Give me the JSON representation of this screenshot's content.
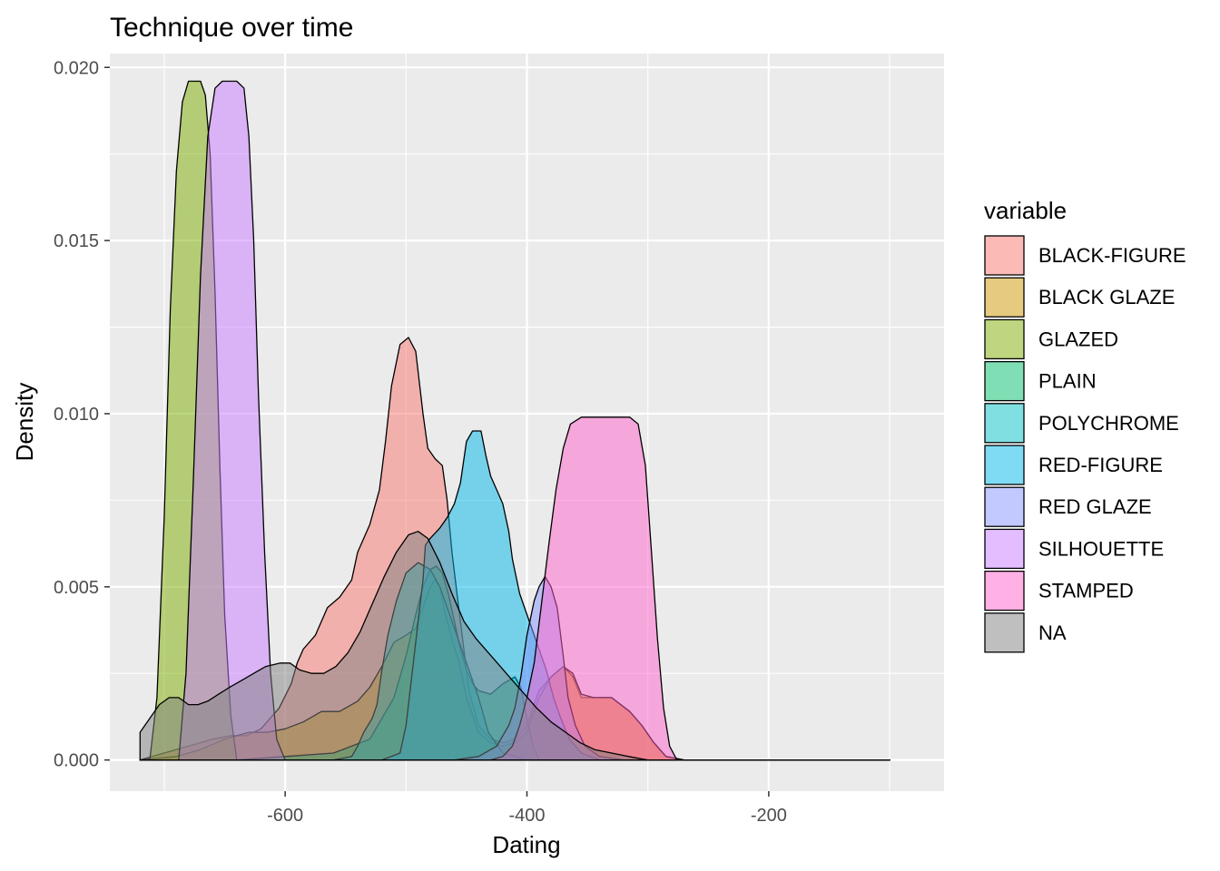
{
  "chart_data": {
    "type": "area",
    "title": "Technique over time",
    "xlabel": "Dating",
    "ylabel": "Density",
    "xlim": [
      -745,
      -55
    ],
    "ylim": [
      -0.0009,
      0.0204
    ],
    "x_ticks": [
      -600,
      -400,
      -200
    ],
    "x_tick_labels": [
      "-600",
      "-400",
      "-200"
    ],
    "x_minor": [
      -700,
      -500,
      -300,
      -100
    ],
    "y_ticks": [
      0,
      0.005,
      0.01,
      0.015,
      0.02
    ],
    "y_tick_labels": [
      "0.000",
      "0.005",
      "0.010",
      "0.015",
      "0.020"
    ],
    "y_minor": [
      0.0025,
      0.0075,
      0.0125,
      0.0175
    ],
    "grid": true,
    "legend_position": "right",
    "legend_title": "variable",
    "series": [
      {
        "name": "BLACK-FIGURE",
        "color": "#F8766D",
        "points": [
          [
            -720,
            0
          ],
          [
            -700,
            0.0002
          ],
          [
            -680,
            0.0004
          ],
          [
            -660,
            0.0006
          ],
          [
            -645,
            0.0007
          ],
          [
            -632,
            0.0007
          ],
          [
            -620,
            0.0009
          ],
          [
            -605,
            0.0015
          ],
          [
            -595,
            0.0022
          ],
          [
            -590,
            0.0028
          ],
          [
            -585,
            0.0032
          ],
          [
            -575,
            0.0036
          ],
          [
            -565,
            0.0044
          ],
          [
            -555,
            0.0047
          ],
          [
            -545,
            0.0052
          ],
          [
            -540,
            0.006
          ],
          [
            -530,
            0.0068
          ],
          [
            -522,
            0.0078
          ],
          [
            -517,
            0.0092
          ],
          [
            -512,
            0.0108
          ],
          [
            -505,
            0.012
          ],
          [
            -498,
            0.0122
          ],
          [
            -492,
            0.0118
          ],
          [
            -486,
            0.01
          ],
          [
            -482,
            0.009
          ],
          [
            -476,
            0.0087
          ],
          [
            -470,
            0.0085
          ],
          [
            -466,
            0.0075
          ],
          [
            -462,
            0.006
          ],
          [
            -455,
            0.004
          ],
          [
            -448,
            0.002
          ],
          [
            -440,
            0.001
          ],
          [
            -430,
            0.0006
          ],
          [
            -420,
            0.0005
          ],
          [
            -410,
            0.0006
          ],
          [
            -400,
            0.001
          ],
          [
            -390,
            0.002
          ],
          [
            -380,
            0.0024
          ],
          [
            -370,
            0.0027
          ],
          [
            -362,
            0.0024
          ],
          [
            -355,
            0.0018
          ],
          [
            -345,
            0.0018
          ],
          [
            -330,
            0.0018
          ],
          [
            -315,
            0.0014
          ],
          [
            -305,
            0.001
          ],
          [
            -295,
            0.0005
          ],
          [
            -285,
            0.0001
          ],
          [
            -270,
            0
          ],
          [
            -100,
            0
          ]
        ]
      },
      {
        "name": "BLACK GLAZE",
        "color": "#CD9600",
        "points": [
          [
            -720,
            0
          ],
          [
            -690,
            0.0001
          ],
          [
            -670,
            0.0003
          ],
          [
            -650,
            0.0006
          ],
          [
            -630,
            0.0008
          ],
          [
            -615,
            0.0008
          ],
          [
            -600,
            0.0009
          ],
          [
            -585,
            0.0011
          ],
          [
            -570,
            0.0014
          ],
          [
            -555,
            0.0014
          ],
          [
            -540,
            0.0017
          ],
          [
            -530,
            0.0021
          ],
          [
            -520,
            0.0027
          ],
          [
            -510,
            0.0034
          ],
          [
            -500,
            0.0036
          ],
          [
            -492,
            0.0038
          ],
          [
            -486,
            0.0044
          ],
          [
            -480,
            0.005
          ],
          [
            -476,
            0.0052
          ],
          [
            -472,
            0.005
          ],
          [
            -468,
            0.0043
          ],
          [
            -462,
            0.0035
          ],
          [
            -456,
            0.0028
          ],
          [
            -450,
            0.0018
          ],
          [
            -440,
            0.0008
          ],
          [
            -430,
            0.0005
          ],
          [
            -420,
            0.0004
          ],
          [
            -410,
            0.0005
          ],
          [
            -400,
            0.0008
          ],
          [
            -390,
            0.0018
          ],
          [
            -380,
            0.0024
          ],
          [
            -370,
            0.0027
          ],
          [
            -362,
            0.0025
          ],
          [
            -355,
            0.0019
          ],
          [
            -345,
            0.0018
          ],
          [
            -330,
            0.0018
          ],
          [
            -315,
            0.0014
          ],
          [
            -305,
            0.001
          ],
          [
            -295,
            0.0005
          ],
          [
            -285,
            0.0001
          ],
          [
            -270,
            0
          ],
          [
            -100,
            0
          ]
        ]
      },
      {
        "name": "GLAZED",
        "color": "#7CAE00",
        "points": [
          [
            -720,
            0
          ],
          [
            -712,
            0
          ],
          [
            -706,
            0.0018
          ],
          [
            -700,
            0.007
          ],
          [
            -695,
            0.013
          ],
          [
            -690,
            0.017
          ],
          [
            -685,
            0.019
          ],
          [
            -680,
            0.0196
          ],
          [
            -670,
            0.0196
          ],
          [
            -666,
            0.0192
          ],
          [
            -662,
            0.0175
          ],
          [
            -658,
            0.0135
          ],
          [
            -654,
            0.0085
          ],
          [
            -650,
            0.0042
          ],
          [
            -645,
            0.0013
          ],
          [
            -640,
            0
          ],
          [
            -100,
            0
          ]
        ]
      },
      {
        "name": "PLAIN",
        "color": "#00BE67",
        "points": [
          [
            -720,
            0
          ],
          [
            -640,
            0
          ],
          [
            -600,
            0.0001
          ],
          [
            -560,
            0.0002
          ],
          [
            -530,
            0.0006
          ],
          [
            -510,
            0.0018
          ],
          [
            -500,
            0.003
          ],
          [
            -492,
            0.0042
          ],
          [
            -486,
            0.005
          ],
          [
            -480,
            0.0055
          ],
          [
            -475,
            0.0056
          ],
          [
            -470,
            0.0054
          ],
          [
            -465,
            0.0048
          ],
          [
            -460,
            0.004
          ],
          [
            -455,
            0.0032
          ],
          [
            -450,
            0.0026
          ],
          [
            -445,
            0.0022
          ],
          [
            -440,
            0.002
          ],
          [
            -430,
            0.0019
          ],
          [
            -420,
            0.0022
          ],
          [
            -410,
            0.0024
          ],
          [
            -405,
            0.0021
          ],
          [
            -400,
            0.0012
          ],
          [
            -395,
            0.0004
          ],
          [
            -390,
            0
          ],
          [
            -100,
            0
          ]
        ]
      },
      {
        "name": "POLYCHROME",
        "color": "#00BFC4",
        "points": [
          [
            -720,
            0
          ],
          [
            -640,
            0
          ],
          [
            -560,
            0
          ],
          [
            -545,
            0.0001
          ],
          [
            -540,
            0.0004
          ],
          [
            -535,
            0.0008
          ],
          [
            -528,
            0.0012
          ],
          [
            -524,
            0.0016
          ],
          [
            -520,
            0.0026
          ],
          [
            -515,
            0.0036
          ],
          [
            -508,
            0.0046
          ],
          [
            -500,
            0.0054
          ],
          [
            -490,
            0.0057
          ],
          [
            -480,
            0.0055
          ],
          [
            -472,
            0.005
          ],
          [
            -464,
            0.0042
          ],
          [
            -456,
            0.0034
          ],
          [
            -448,
            0.0026
          ],
          [
            -440,
            0.0018
          ],
          [
            -432,
            0.0008
          ],
          [
            -420,
            0.0002
          ],
          [
            -400,
            0
          ],
          [
            -100,
            0
          ]
        ]
      },
      {
        "name": "RED-FIGURE",
        "color": "#00B8E7",
        "points": [
          [
            -720,
            0
          ],
          [
            -520,
            0
          ],
          [
            -505,
            0.0002
          ],
          [
            -500,
            0.001
          ],
          [
            -495,
            0.0025
          ],
          [
            -490,
            0.004
          ],
          [
            -486,
            0.0052
          ],
          [
            -484,
            0.0062
          ],
          [
            -480,
            0.0064
          ],
          [
            -472,
            0.0067
          ],
          [
            -466,
            0.007
          ],
          [
            -460,
            0.0074
          ],
          [
            -455,
            0.008
          ],
          [
            -450,
            0.0092
          ],
          [
            -445,
            0.0095
          ],
          [
            -438,
            0.0095
          ],
          [
            -434,
            0.0088
          ],
          [
            -430,
            0.0082
          ],
          [
            -425,
            0.0078
          ],
          [
            -420,
            0.0074
          ],
          [
            -415,
            0.0066
          ],
          [
            -412,
            0.0058
          ],
          [
            -406,
            0.0048
          ],
          [
            -398,
            0.004
          ],
          [
            -390,
            0.0032
          ],
          [
            -384,
            0.0026
          ],
          [
            -378,
            0.0018
          ],
          [
            -372,
            0.0012
          ],
          [
            -365,
            0.0006
          ],
          [
            -355,
            0.0002
          ],
          [
            -340,
            0
          ],
          [
            -100,
            0
          ]
        ]
      },
      {
        "name": "RED GLAZE",
        "color": "#8494FF",
        "points": [
          [
            -720,
            0
          ],
          [
            -460,
            0
          ],
          [
            -440,
            0.0001
          ],
          [
            -425,
            0.0004
          ],
          [
            -415,
            0.001
          ],
          [
            -410,
            0.0015
          ],
          [
            -405,
            0.0024
          ],
          [
            -400,
            0.0036
          ],
          [
            -394,
            0.0046
          ],
          [
            -390,
            0.005
          ],
          [
            -385,
            0.0053
          ],
          [
            -380,
            0.005
          ],
          [
            -375,
            0.0044
          ],
          [
            -370,
            0.003
          ],
          [
            -366,
            0.0018
          ],
          [
            -360,
            0.001
          ],
          [
            -352,
            0.0004
          ],
          [
            -340,
            0.0001
          ],
          [
            -320,
            0
          ],
          [
            -100,
            0
          ]
        ]
      },
      {
        "name": "SILHOUETTE",
        "color": "#C77CFF",
        "points": [
          [
            -720,
            0
          ],
          [
            -688,
            0
          ],
          [
            -682,
            0.0025
          ],
          [
            -676,
            0.008
          ],
          [
            -670,
            0.014
          ],
          [
            -664,
            0.018
          ],
          [
            -658,
            0.0194
          ],
          [
            -652,
            0.0196
          ],
          [
            -640,
            0.0196
          ],
          [
            -634,
            0.0194
          ],
          [
            -630,
            0.018
          ],
          [
            -626,
            0.015
          ],
          [
            -622,
            0.0105
          ],
          [
            -617,
            0.006
          ],
          [
            -612,
            0.0025
          ],
          [
            -607,
            0.0006
          ],
          [
            -600,
            0
          ],
          [
            -100,
            0
          ]
        ]
      },
      {
        "name": "STAMPED",
        "color": "#FF61CC",
        "points": [
          [
            -720,
            0
          ],
          [
            -430,
            0
          ],
          [
            -420,
            0.0001
          ],
          [
            -412,
            0.0004
          ],
          [
            -406,
            0.001
          ],
          [
            -400,
            0.0018
          ],
          [
            -394,
            0.0028
          ],
          [
            -388,
            0.0045
          ],
          [
            -382,
            0.0062
          ],
          [
            -376,
            0.0078
          ],
          [
            -370,
            0.009
          ],
          [
            -364,
            0.0097
          ],
          [
            -355,
            0.0099
          ],
          [
            -315,
            0.0099
          ],
          [
            -308,
            0.0097
          ],
          [
            -302,
            0.0085
          ],
          [
            -297,
            0.006
          ],
          [
            -292,
            0.0035
          ],
          [
            -287,
            0.0015
          ],
          [
            -282,
            0.0004
          ],
          [
            -276,
            0
          ],
          [
            -100,
            0
          ]
        ]
      },
      {
        "name": "NA",
        "color": "#808080",
        "points": [
          [
            -720,
            0.0008
          ],
          [
            -712,
            0.0012
          ],
          [
            -704,
            0.0016
          ],
          [
            -696,
            0.0018
          ],
          [
            -688,
            0.0018
          ],
          [
            -680,
            0.0016
          ],
          [
            -672,
            0.0016
          ],
          [
            -664,
            0.0017
          ],
          [
            -655,
            0.0019
          ],
          [
            -646,
            0.0021
          ],
          [
            -636,
            0.0023
          ],
          [
            -626,
            0.0025
          ],
          [
            -616,
            0.0027
          ],
          [
            -604,
            0.0028
          ],
          [
            -596,
            0.0028
          ],
          [
            -588,
            0.0026
          ],
          [
            -578,
            0.0025
          ],
          [
            -568,
            0.0025
          ],
          [
            -558,
            0.0027
          ],
          [
            -548,
            0.0031
          ],
          [
            -538,
            0.0037
          ],
          [
            -528,
            0.0045
          ],
          [
            -518,
            0.0053
          ],
          [
            -508,
            0.006
          ],
          [
            -498,
            0.0065
          ],
          [
            -490,
            0.0066
          ],
          [
            -482,
            0.0064
          ],
          [
            -472,
            0.0057
          ],
          [
            -462,
            0.0048
          ],
          [
            -452,
            0.004
          ],
          [
            -442,
            0.0035
          ],
          [
            -432,
            0.0031
          ],
          [
            -422,
            0.0027
          ],
          [
            -412,
            0.0023
          ],
          [
            -402,
            0.0019
          ],
          [
            -392,
            0.0015
          ],
          [
            -380,
            0.0011
          ],
          [
            -368,
            0.0008
          ],
          [
            -356,
            0.0005
          ],
          [
            -344,
            0.0003
          ],
          [
            -330,
            0.0002
          ],
          [
            -316,
            0.0001
          ],
          [
            -300,
            0
          ],
          [
            -100,
            0
          ]
        ]
      }
    ]
  }
}
